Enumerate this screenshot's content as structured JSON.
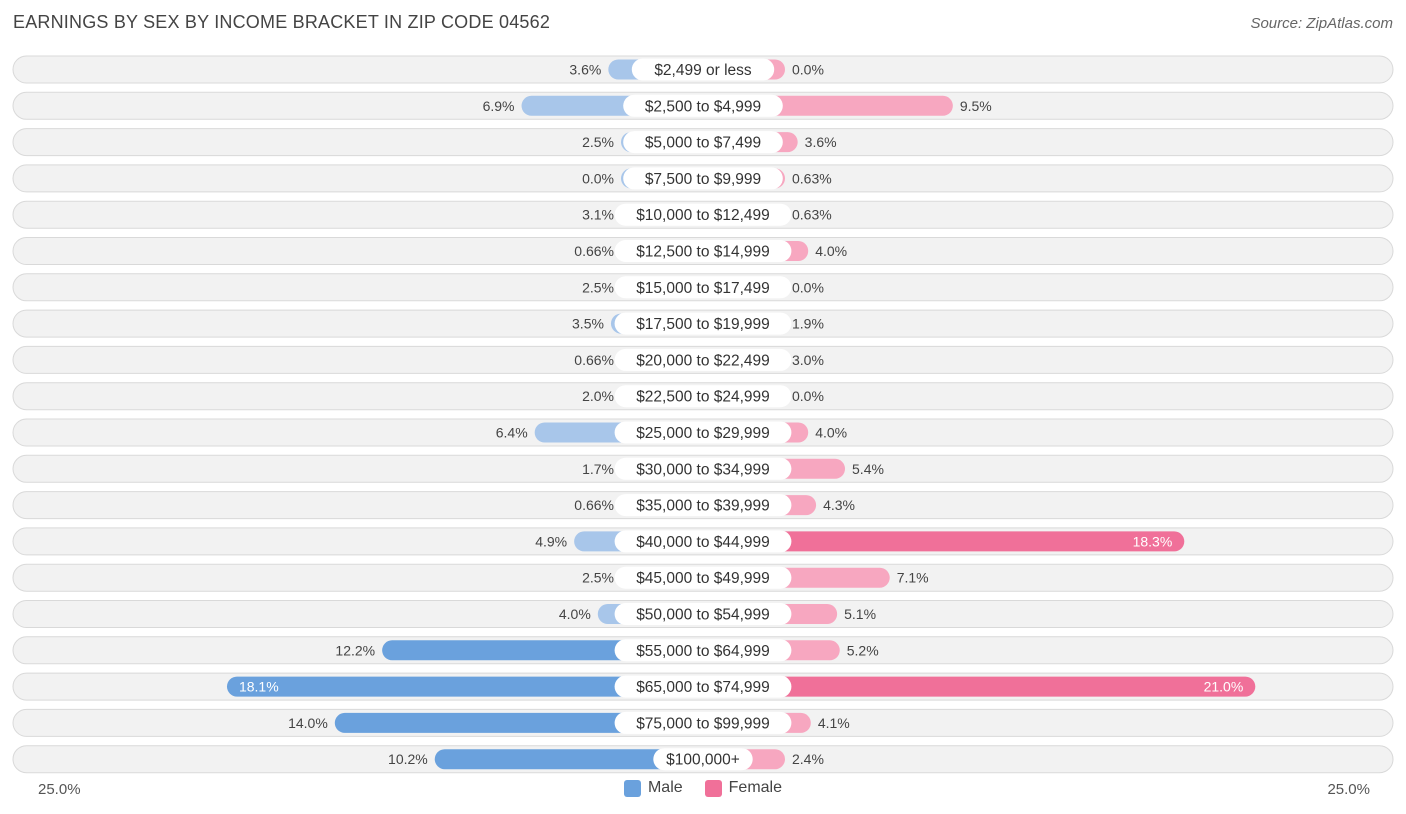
{
  "header": {
    "title": "EARNINGS BY SEX BY INCOME BRACKET IN ZIP CODE 04562",
    "source": "Source: ZipAtlas.com"
  },
  "colors": {
    "male": "#a8c6ea",
    "male_strong": "#6aa1dd",
    "female": "#f7a7c0",
    "female_strong": "#f07099"
  },
  "chart_data": {
    "type": "bar",
    "orientation": "horizontal-diverging",
    "title": "EARNINGS BY SEX BY INCOME BRACKET IN ZIP CODE 04562",
    "categories": [
      "$2,499 or less",
      "$2,500 to $4,999",
      "$5,000 to $7,499",
      "$7,500 to $9,999",
      "$10,000 to $12,499",
      "$12,500 to $14,999",
      "$15,000 to $17,499",
      "$17,500 to $19,999",
      "$20,000 to $22,499",
      "$22,500 to $24,999",
      "$25,000 to $29,999",
      "$30,000 to $34,999",
      "$35,000 to $39,999",
      "$40,000 to $44,999",
      "$45,000 to $49,999",
      "$50,000 to $54,999",
      "$55,000 to $64,999",
      "$65,000 to $74,999",
      "$75,000 to $99,999",
      "$100,000+"
    ],
    "series": [
      {
        "name": "Male",
        "values": [
          3.6,
          6.9,
          2.5,
          0.0,
          3.1,
          0.66,
          2.5,
          3.5,
          0.66,
          2.0,
          6.4,
          1.7,
          0.66,
          4.9,
          2.5,
          4.0,
          12.2,
          18.1,
          14.0,
          10.2
        ],
        "labels": [
          "3.6%",
          "6.9%",
          "2.5%",
          "0.0%",
          "3.1%",
          "0.66%",
          "2.5%",
          "3.5%",
          "0.66%",
          "2.0%",
          "6.4%",
          "1.7%",
          "0.66%",
          "4.9%",
          "2.5%",
          "4.0%",
          "12.2%",
          "18.1%",
          "14.0%",
          "10.2%"
        ]
      },
      {
        "name": "Female",
        "values": [
          0.0,
          9.5,
          3.6,
          0.63,
          0.63,
          4.0,
          0.0,
          1.9,
          3.0,
          0.0,
          4.0,
          5.4,
          4.3,
          18.3,
          7.1,
          5.1,
          5.2,
          21.0,
          4.1,
          2.4
        ],
        "labels": [
          "0.0%",
          "9.5%",
          "3.6%",
          "0.63%",
          "0.63%",
          "4.0%",
          "0.0%",
          "1.9%",
          "3.0%",
          "0.0%",
          "4.0%",
          "5.4%",
          "4.3%",
          "18.3%",
          "7.1%",
          "5.1%",
          "5.2%",
          "21.0%",
          "4.1%",
          "2.4%"
        ]
      }
    ],
    "xlim": [
      -25.0,
      25.0
    ],
    "axis_min_label": "25.0%",
    "axis_max_label": "25.0%",
    "legend": [
      "Male",
      "Female"
    ],
    "legend_position": "bottom-center"
  }
}
